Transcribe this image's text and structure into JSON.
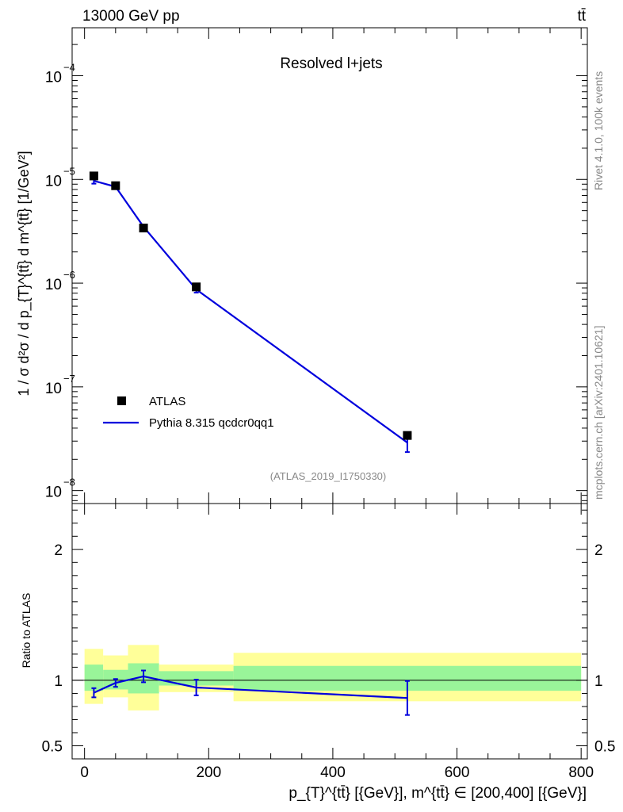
{
  "header": {
    "energy_label": "13000 GeV pp",
    "process_label": "tt̄"
  },
  "side_labels": {
    "rivet": "Rivet 4.1.0,  100k events",
    "mcplots": "mcplots.cern.ch [arXiv:2401.10621]"
  },
  "colors": {
    "data": "#000000",
    "mc": "#0000dd",
    "band_inner": "#99f599",
    "band_outer": "#ffff99"
  },
  "chart_data": [
    {
      "type": "scatter",
      "title": "Resolved l+jets",
      "analysis_label": "(ATLAS_2019_I1750330)",
      "ylabel": "1 / σ d²σ / d p_{T}^{tt̄} d m^{tt̄} [1/GeV²]",
      "yscale": "log",
      "ylim": [
        7.5e-09,
        0.00029
      ],
      "xlim": [
        -20,
        810
      ],
      "ytick_values": [
        1e-08,
        1e-07,
        1e-06,
        1e-05,
        0.0001
      ],
      "ytick_labels": [
        "10",
        "10",
        "10",
        "10",
        "10"
      ],
      "ytick_exponents": [
        "−8",
        "−7",
        "−6",
        "−5",
        "−4"
      ],
      "legend": [
        "ATLAS",
        "Pythia 8.315 qcdcr0qq1"
      ],
      "series": [
        {
          "name": "ATLAS",
          "style": "square-marker",
          "x": [
            15,
            50,
            95,
            180,
            520
          ],
          "y": [
            1.08e-05,
            8.7e-06,
            3.4e-06,
            9.2e-07,
            3.4e-08
          ]
        },
        {
          "name": "Pythia 8.315 qcdcr0qq1",
          "style": "line",
          "x": [
            15,
            50,
            95,
            180,
            520
          ],
          "y": [
            9.7e-06,
            8.5e-06,
            3.5e-06,
            8.7e-07,
            2.9e-08
          ],
          "yerr": [
            6e-07,
            3e-07,
            1.5e-07,
            6e-08,
            5.5e-09
          ]
        }
      ]
    },
    {
      "type": "line",
      "ylabel": "Ratio to ATLAS",
      "xlabel": "p_{T}^{tt̄} [{GeV}], m^{tt̄} ∈ [200,400] [{GeV}]",
      "xlim": [
        -20,
        810
      ],
      "ylim": [
        0.4,
        2.35
      ],
      "ytick_values": [
        0.5,
        1,
        2
      ],
      "ytick_labels": [
        "0.5",
        "1",
        "2"
      ],
      "xtick_values": [
        0,
        200,
        400,
        600,
        800
      ],
      "xtick_labels": [
        "0",
        "200",
        "400",
        "600",
        "800"
      ],
      "bins": [
        {
          "lo": 0,
          "hi": 30,
          "inner": [
            0.92,
            1.12
          ],
          "outer": [
            0.82,
            1.24
          ]
        },
        {
          "lo": 30,
          "hi": 70,
          "inner": [
            0.93,
            1.08
          ],
          "outer": [
            0.87,
            1.19
          ]
        },
        {
          "lo": 70,
          "hi": 120,
          "inner": [
            0.9,
            1.13
          ],
          "outer": [
            0.77,
            1.27
          ]
        },
        {
          "lo": 120,
          "hi": 240,
          "inner": [
            0.96,
            1.07
          ],
          "outer": [
            0.91,
            1.12
          ]
        },
        {
          "lo": 240,
          "hi": 800,
          "inner": [
            0.92,
            1.11
          ],
          "outer": [
            0.84,
            1.21
          ]
        }
      ],
      "series": [
        {
          "name": "Pythia 8.315 qcdcr0qq1",
          "x": [
            15,
            50,
            95,
            180,
            520
          ],
          "y": [
            0.905,
            0.98,
            1.03,
            0.945,
            0.865
          ],
          "yerr": [
            0.035,
            0.03,
            0.045,
            0.06,
            0.13
          ]
        }
      ]
    }
  ]
}
